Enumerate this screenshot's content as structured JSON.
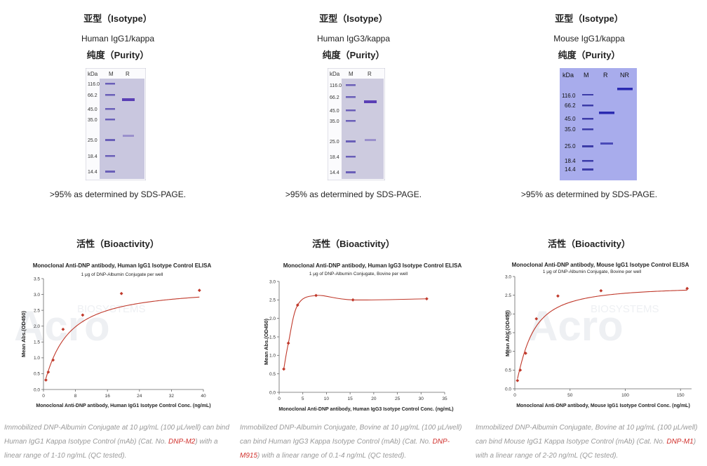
{
  "panels": [
    {
      "isotype_heading": "亚型（Isotype）",
      "isotype_value": "Human IgG1/kappa",
      "purity_heading": "纯度（Purity）",
      "gel": {
        "lanes": [
          "kDa",
          "M",
          "R"
        ],
        "markers": [
          "116.0",
          "66.2",
          "45.0",
          "35.0",
          "25.0",
          "18.4",
          "14.4"
        ],
        "bg": "#c9c7df"
      },
      "purity_note": ">95% as determined by SDS-PAGE.",
      "bioactivity_heading": "活性（Bioactivity）",
      "chart_data": {
        "type": "scatter",
        "title": "Monoclonal Anti-DNP antibody, Human IgG1 Isotype Control ELISA",
        "subtitle": "1 μg of DNP-Albumin Conjugate per well",
        "xlabel": "Monoclonal Anti-DNP antibody, Human IgG1 Isotype Control Conc. (ng/mL)",
        "ylabel": "Mean Abs.(OD450)",
        "xlim": [
          0,
          40
        ],
        "ylim": [
          0,
          3.5
        ],
        "xticks": [
          "0",
          "8",
          "16",
          "24",
          "32",
          "40"
        ],
        "xtick_values": [
          0,
          8,
          16,
          24,
          32,
          40
        ],
        "yticks": [
          "0.0",
          "0.5",
          "1.0",
          "1.5",
          "2.0",
          "2.5",
          "3.0",
          "3.5"
        ],
        "ytick_values": [
          0,
          0.5,
          1,
          1.5,
          2,
          2.5,
          3,
          3.5
        ],
        "x": [
          0.6,
          1.2,
          2.4,
          4.9,
          9.8,
          19.5,
          39
        ],
        "y": [
          0.3,
          0.55,
          0.93,
          1.9,
          2.35,
          3.03,
          3.13
        ],
        "fit_type": "4PL",
        "fit": {
          "a": 0.1,
          "d": 3.25,
          "c": 5.6,
          "b": 1.1
        },
        "color": "#c0392b"
      },
      "caption_pre": "Immobilized DNP-Albumin Conjugate at 10 μg/mL (100 μL/well) can bind Human IgG1 Kappa Isotype Control (mAb) (Cat. No. ",
      "catalog_no": "DNP-M2",
      "caption_post": ") with a linear range of 1-10 ng/mL (QC tested)."
    },
    {
      "isotype_heading": "亚型（Isotype）",
      "isotype_value": "Human IgG3/kappa",
      "purity_heading": "纯度（Purity）",
      "gel": {
        "lanes": [
          "kDa",
          "M",
          "R"
        ],
        "markers": [
          "116.0",
          "66.2",
          "45.0",
          "35.0",
          "25.0",
          "18.4",
          "14.4"
        ],
        "bg": "#cdcbdf"
      },
      "purity_note": ">95% as determined by SDS-PAGE.",
      "bioactivity_heading": "活性（Bioactivity）",
      "chart_data": {
        "type": "scatter",
        "title": "Monoclonal Anti-DNP antibody, Human IgG3 Isotype Control ELISA",
        "subtitle": "1 μg of DNP-Albumin Conjugate, Bovine per well",
        "xlabel": "Monoclonal Anti-DNP antibody, Human IgG3 Isotype Control Conc. (ng/mL)",
        "ylabel": "Mean Abs.(OD450)",
        "xlim": [
          0,
          35
        ],
        "ylim": [
          0,
          3.0
        ],
        "xticks": [
          "0",
          "5",
          "10",
          "15",
          "20",
          "25",
          "30",
          "35"
        ],
        "xtick_values": [
          0,
          5,
          10,
          15,
          20,
          25,
          30,
          35
        ],
        "yticks": [
          "0.0",
          "0.5",
          "1.0",
          "1.5",
          "2.0",
          "2.5",
          "3.0"
        ],
        "ytick_values": [
          0,
          0.5,
          1,
          1.5,
          2,
          2.5,
          3
        ],
        "x": [
          0.98,
          1.95,
          3.9,
          7.8,
          15.6,
          31.2
        ],
        "y": [
          0.63,
          1.33,
          2.36,
          2.62,
          2.5,
          2.53
        ],
        "fit_type": "spline",
        "color": "#c0392b"
      },
      "caption_pre": "Immobilized DNP-Albumin Conjugate, Bovine at 10 μg/mL (100 μL/well) can bind Human IgG3 Kappa Isotype Control (mAb) (Cat. No. ",
      "catalog_no": "DNP-M915",
      "caption_post": ") with a linear range of 0.1-4 ng/mL (QC tested)."
    },
    {
      "isotype_heading": "亚型（Isotype）",
      "isotype_value": "Mouse IgG1/kappa",
      "purity_heading": "纯度（Purity）",
      "gel": {
        "lanes": [
          "kDa",
          "M",
          "R",
          "NR"
        ],
        "markers": [
          "116.0",
          "66.2",
          "45.0",
          "35.0",
          "25.0",
          "18.4",
          "14.4"
        ],
        "bg": "#a8acec"
      },
      "purity_note": ">95% as determined by SDS-PAGE.",
      "bioactivity_heading": "活性（Bioactivity）",
      "chart_data": {
        "type": "scatter",
        "title": "Monoclonal Anti-DNP antibody, Mouse IgG1 Isotype Control ELISA",
        "subtitle": "1 μg of DNP-Albumin Conjugate, Bovine per well",
        "xlabel": "Monoclonal Anti-DNP antibody, Mouse IgG1 Isotype Control Conc. (ng/mL)",
        "ylabel": "Mean Abs.(OD450)",
        "xlim": [
          0,
          160
        ],
        "ylim": [
          0,
          3.0
        ],
        "xticks": [
          "0",
          "50",
          "100",
          "150"
        ],
        "xtick_values": [
          0,
          50,
          100,
          150
        ],
        "yticks": [
          "0.0",
          "0.5",
          "1.0",
          "1.5",
          "2.0",
          "2.5",
          "3.0"
        ],
        "ytick_values": [
          0,
          0.5,
          1,
          1.5,
          2,
          2.5,
          3
        ],
        "x": [
          2.4,
          4.9,
          9.8,
          19.5,
          39,
          78,
          156
        ],
        "y": [
          0.22,
          0.5,
          0.95,
          1.87,
          2.48,
          2.62,
          2.68
        ],
        "fit_type": "4PL",
        "fit": {
          "a": 0.02,
          "d": 2.75,
          "c": 14,
          "b": 1.3
        },
        "color": "#c0392b"
      },
      "caption_pre": "Immobilized DNP-Albumin Conjugate, Bovine at 10 μg/mL (100 μL/well) can bind Mouse IgG1 Kappa Isotype Control (mAb) (Cat. No. ",
      "catalog_no": "DNP-M1",
      "caption_post": ") with a linear range of 2-20 ng/mL (QC tested)."
    }
  ],
  "watermark": {
    "brand": "Acro",
    "sub": "BIOSYSTEMS",
    "color": "#eef0f3"
  }
}
